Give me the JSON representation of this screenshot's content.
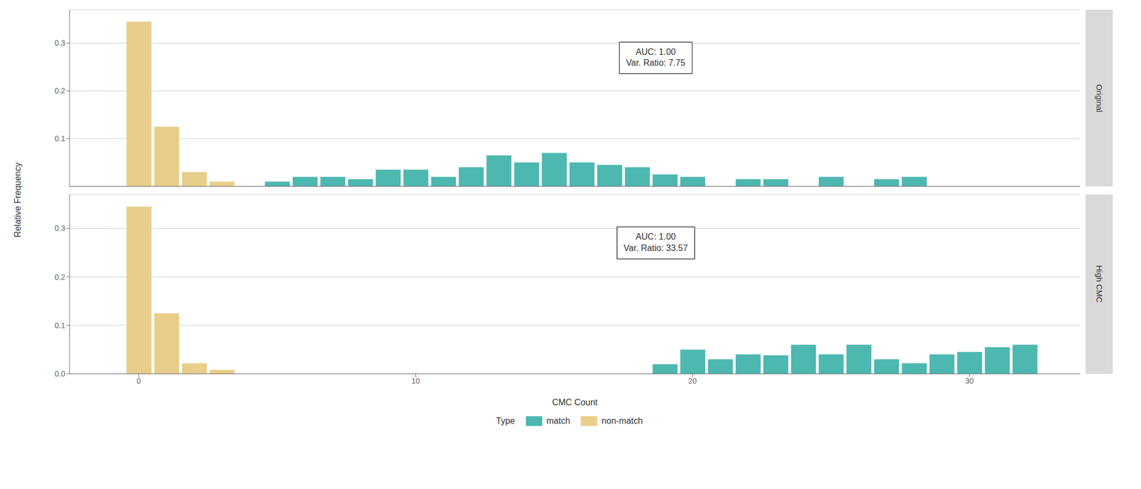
{
  "chart_data": {
    "type": "bar",
    "xlabel": "CMC Count",
    "ylabel": "Relative Frequency",
    "legend_title": "Type",
    "legend": "bottom",
    "grid": true,
    "xlim": [
      -2.5,
      34
    ],
    "xticks": [
      0,
      10,
      20,
      30
    ],
    "ylim": [
      0,
      0.37
    ],
    "yticks": [
      {
        "value": 0,
        "label": "0.0"
      },
      0.1,
      0.2,
      0.3
    ],
    "series": [
      {
        "name": "match",
        "color": "#4DB8B0"
      },
      {
        "name": "non-match",
        "color": "#E8CE8A"
      }
    ],
    "facets": [
      {
        "title": "Original",
        "tick_labels": "y",
        "annotations": [
          "AUC: 1.00\nVar. Ratio: 7.75"
        ],
        "series": [
          {
            "x": [
              5,
              6,
              7,
              8,
              9,
              10,
              11,
              12,
              13,
              14,
              15,
              16,
              17,
              18,
              19,
              20,
              22,
              23,
              25,
              27,
              28
            ],
            "values": [
              0.01,
              0.02,
              0.02,
              0.015,
              0.035,
              0.035,
              0.02,
              0.04,
              0.065,
              0.05,
              0.07,
              0.05,
              0.045,
              0.04,
              0.025,
              0.02,
              0.015,
              0.015,
              0.02,
              0.015,
              0.02
            ]
          },
          {
            "x": [
              -1,
              0,
              1,
              2,
              3
            ],
            "values": [
              0.0,
              0.345,
              0.125,
              0.03,
              0.01
            ]
          }
        ]
      },
      {
        "title": "High CMC",
        "annotations": [
          "AUC: 1.00\nVar. Ratio: 33.57"
        ],
        "series": [
          {
            "x": [
              19,
              20,
              21,
              22,
              23,
              24,
              25,
              26,
              27,
              28,
              29,
              30,
              31,
              32
            ],
            "values": [
              0.02,
              0.05,
              0.03,
              0.04,
              0.038,
              0.06,
              0.04,
              0.06,
              0.03,
              0.022,
              0.04,
              0.045,
              0.055,
              0.06
            ]
          },
          {
            "x": [
              -1,
              0,
              1,
              2,
              3
            ],
            "values": [
              0.0,
              0.345,
              0.125,
              0.022,
              0.008
            ]
          }
        ]
      }
    ]
  }
}
